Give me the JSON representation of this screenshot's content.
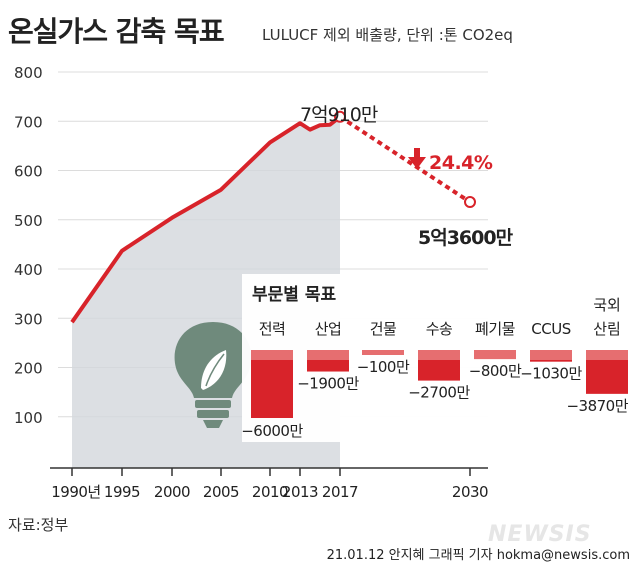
{
  "header": {
    "title": "온실가스 감축 목표",
    "subtitle": "LULUCF 제외 배출량, 단위 :톤 CO2eq"
  },
  "footer": {
    "source": "자료:정부",
    "credit": "21.01.12 안지혜 그래픽 기자 hokma@newsis.com",
    "logo": "NEWSIS"
  },
  "colors": {
    "line": "#d8232a",
    "area": "#d3d7dc",
    "accent": "#d8232a",
    "panel_bg": "#ffffff",
    "bulb": "#6f8a7c"
  },
  "icons": [
    "light-bulb-leaf-icon",
    "arrow-down-icon"
  ],
  "chart_data": [
    {
      "type": "area",
      "title": "온실가스 감축 목표",
      "y_ticks": [
        100,
        200,
        300,
        400,
        500,
        600,
        700,
        800
      ],
      "x_ticks": [
        "1990년",
        "1995",
        "2000",
        "2005",
        "2010",
        "2013",
        "2017",
        "2030"
      ],
      "ylim": [
        0,
        840
      ],
      "series": [
        {
          "kind": "historical",
          "x": [
            1990,
            1995,
            2000,
            2005,
            2010,
            2013,
            2014,
            2015,
            2016,
            2017
          ],
          "y": [
            292,
            437,
            504,
            561,
            657,
            696,
            683,
            692,
            693,
            709.1
          ]
        },
        {
          "kind": "target",
          "x": [
            2017,
            2030
          ],
          "y": [
            709.1,
            536
          ]
        }
      ],
      "annotations": {
        "peak_label": "7억910만",
        "target_label": "5억3600만",
        "change_label": "24.4%"
      }
    },
    {
      "type": "bar",
      "title": "부문별 목표",
      "categories": [
        "전력",
        "산업",
        "건물",
        "수송",
        "폐기물",
        "CCUS",
        "국외 산림"
      ],
      "category_lines": [
        [
          "전력"
        ],
        [
          "산업"
        ],
        [
          "건물"
        ],
        [
          "수송"
        ],
        [
          "폐기물"
        ],
        [
          "CCUS"
        ],
        [
          "국외",
          "산림"
        ]
      ],
      "values": [
        -6000,
        -1900,
        -100,
        -2700,
        -800,
        -1030,
        -3870
      ],
      "labels": [
        "−6000만",
        "−1900만",
        "−100만",
        "−2700만",
        "−800만",
        "−1030만",
        "−3870만"
      ]
    }
  ]
}
